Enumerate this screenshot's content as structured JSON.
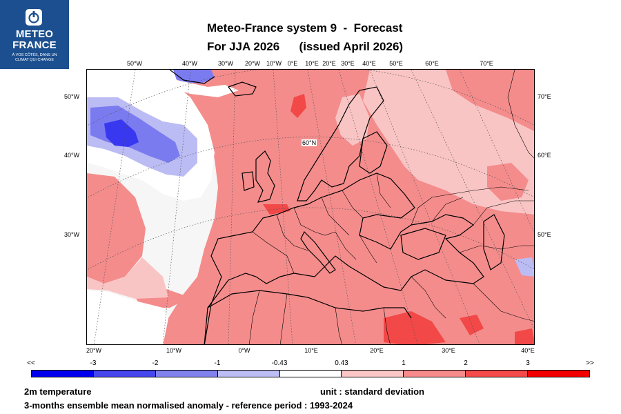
{
  "logo": {
    "line1": "METEO",
    "line2": "FRANCE",
    "tagline1": "À VOS CÔTÉS, DANS UN",
    "tagline2": "CLIMAT QUI CHANGE"
  },
  "title": {
    "line1": "Meteo-France system 9  -  Forecast",
    "line2": "For JJA 2026      (issued April 2026)"
  },
  "map": {
    "top_labels": [
      "50°W",
      "40°W",
      "30°W",
      "20°W",
      "10°W",
      "0°E",
      "10°E",
      "20°E",
      "30°E",
      "40°E",
      "50°E",
      "60°E",
      "70°E"
    ],
    "bottom_labels": [
      "20°W",
      "10°W",
      "0°W",
      "10°E",
      "20°E",
      "30°E",
      "40°E"
    ],
    "left_labels": [
      "50°W",
      "40°W",
      "30°W"
    ],
    "right_labels": [
      "70°E",
      "60°E",
      "50°E"
    ],
    "inner_label": "60°N",
    "colors": {
      "ocean_background": "#f3f3f3",
      "pale_pink": "#f9c4c4",
      "pink": "#f48c8c",
      "red": "#f24848",
      "blue_light": "#bcbcf4",
      "blue_mid": "#7b7bf0",
      "blue_dark": "#3838f0"
    }
  },
  "colorbar": {
    "labels": [
      "<<",
      "-3",
      "-2",
      "-1",
      "-0.43",
      "0.43",
      "1",
      "2",
      "3",
      ">>"
    ],
    "colors": [
      "#0000ee",
      "#4646ee",
      "#8282ee",
      "#bdbdf5",
      "#ffffff",
      "#fbc6c6",
      "#f78a8a",
      "#f44a4a",
      "#f20000"
    ]
  },
  "footer": {
    "variable": "2m temperature",
    "unit": "unit : standard deviation",
    "description": "3-months ensemble mean normalised anomaly - reference period : 1993-2024"
  }
}
